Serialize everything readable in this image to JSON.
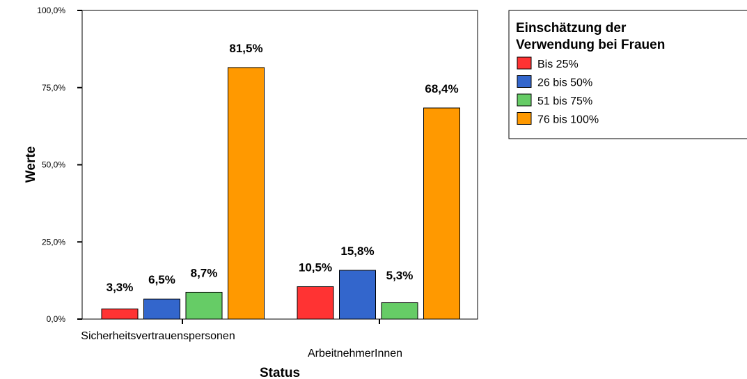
{
  "chart_data": {
    "type": "bar",
    "xlabel": "Status",
    "ylabel": "Werte",
    "ylim": [
      0,
      100
    ],
    "yticks": [
      "0,0%",
      "25,0%",
      "50,0%",
      "75,0%",
      "100,0%"
    ],
    "categories": [
      "Sicherheitsvertrauenspersonen",
      "ArbeitnehmerInnen"
    ],
    "legend": {
      "title_line1": "Einschätzung der",
      "title_line2": "Verwendung bei Frauen",
      "placement": "right"
    },
    "series": [
      {
        "name": "Bis 25%",
        "color": "#ff3333",
        "values": [
          3.3,
          10.5
        ],
        "labels": [
          "3,3%",
          "10,5%"
        ]
      },
      {
        "name": "26 bis 50%",
        "color": "#3366cc",
        "values": [
          6.5,
          15.8
        ],
        "labels": [
          "6,5%",
          "15,8%"
        ]
      },
      {
        "name": "51 bis 75%",
        "color": "#66cc66",
        "values": [
          8.7,
          5.3
        ],
        "labels": [
          "8,7%",
          "5,3%"
        ]
      },
      {
        "name": "76 bis 100%",
        "color": "#ff9900",
        "values": [
          81.5,
          68.4
        ],
        "labels": [
          "81,5%",
          "68,4%"
        ]
      }
    ]
  }
}
